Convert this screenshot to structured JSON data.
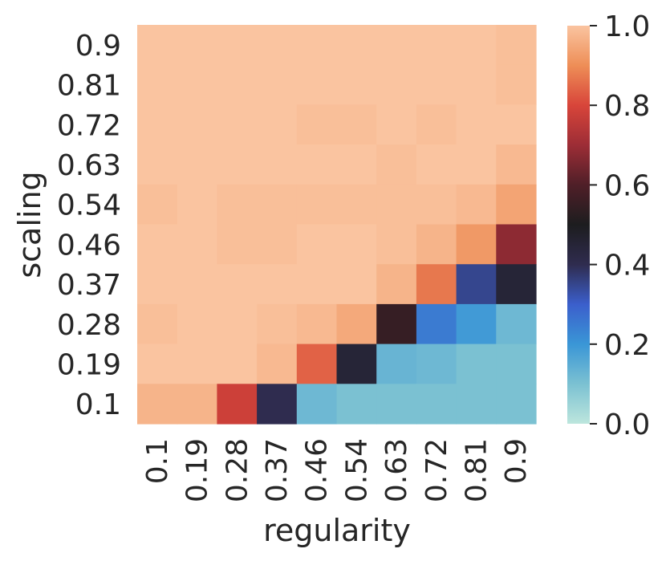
{
  "chart_data": {
    "type": "heatmap",
    "title": "",
    "xlabel": "regularity",
    "ylabel": "scaling",
    "x_categories": [
      "0.1",
      "0.19",
      "0.28",
      "0.37",
      "0.46",
      "0.54",
      "0.63",
      "0.72",
      "0.81",
      "0.9"
    ],
    "y_categories": [
      "0.9",
      "0.81",
      "0.72",
      "0.63",
      "0.54",
      "0.46",
      "0.37",
      "0.28",
      "0.19",
      "0.1"
    ],
    "values": [
      [
        1.0,
        1.0,
        1.0,
        1.0,
        1.0,
        1.0,
        1.0,
        1.0,
        1.0,
        0.99
      ],
      [
        1.0,
        1.0,
        1.0,
        1.0,
        1.0,
        1.0,
        1.0,
        1.0,
        1.0,
        0.99
      ],
      [
        1.0,
        1.0,
        1.0,
        1.0,
        0.99,
        0.99,
        1.0,
        0.99,
        1.0,
        1.0
      ],
      [
        1.0,
        1.0,
        1.0,
        1.0,
        1.0,
        1.0,
        0.99,
        1.0,
        1.0,
        0.98
      ],
      [
        0.99,
        1.0,
        0.99,
        0.99,
        0.99,
        0.99,
        0.99,
        0.99,
        0.98,
        0.94
      ],
      [
        1.0,
        1.0,
        0.99,
        0.99,
        1.0,
        1.0,
        0.99,
        0.97,
        0.92,
        0.68
      ],
      [
        1.0,
        1.0,
        1.0,
        1.0,
        1.0,
        1.0,
        0.97,
        0.87,
        0.35,
        0.45
      ],
      [
        0.99,
        1.0,
        1.0,
        0.99,
        0.98,
        0.95,
        0.55,
        0.25,
        0.19,
        0.12
      ],
      [
        1.0,
        1.0,
        1.0,
        0.98,
        0.84,
        0.45,
        0.13,
        0.12,
        0.1,
        0.1
      ],
      [
        0.97,
        0.97,
        0.78,
        0.4,
        0.12,
        0.1,
        0.1,
        0.1,
        0.1,
        0.1
      ]
    ],
    "colorbar": {
      "min": 0.0,
      "max": 1.0,
      "ticks": [
        "0.0",
        "0.2",
        "0.4",
        "0.6",
        "0.8",
        "1.0"
      ]
    },
    "colormap": "icefire",
    "grid": false,
    "legend": "colorbar-right"
  }
}
